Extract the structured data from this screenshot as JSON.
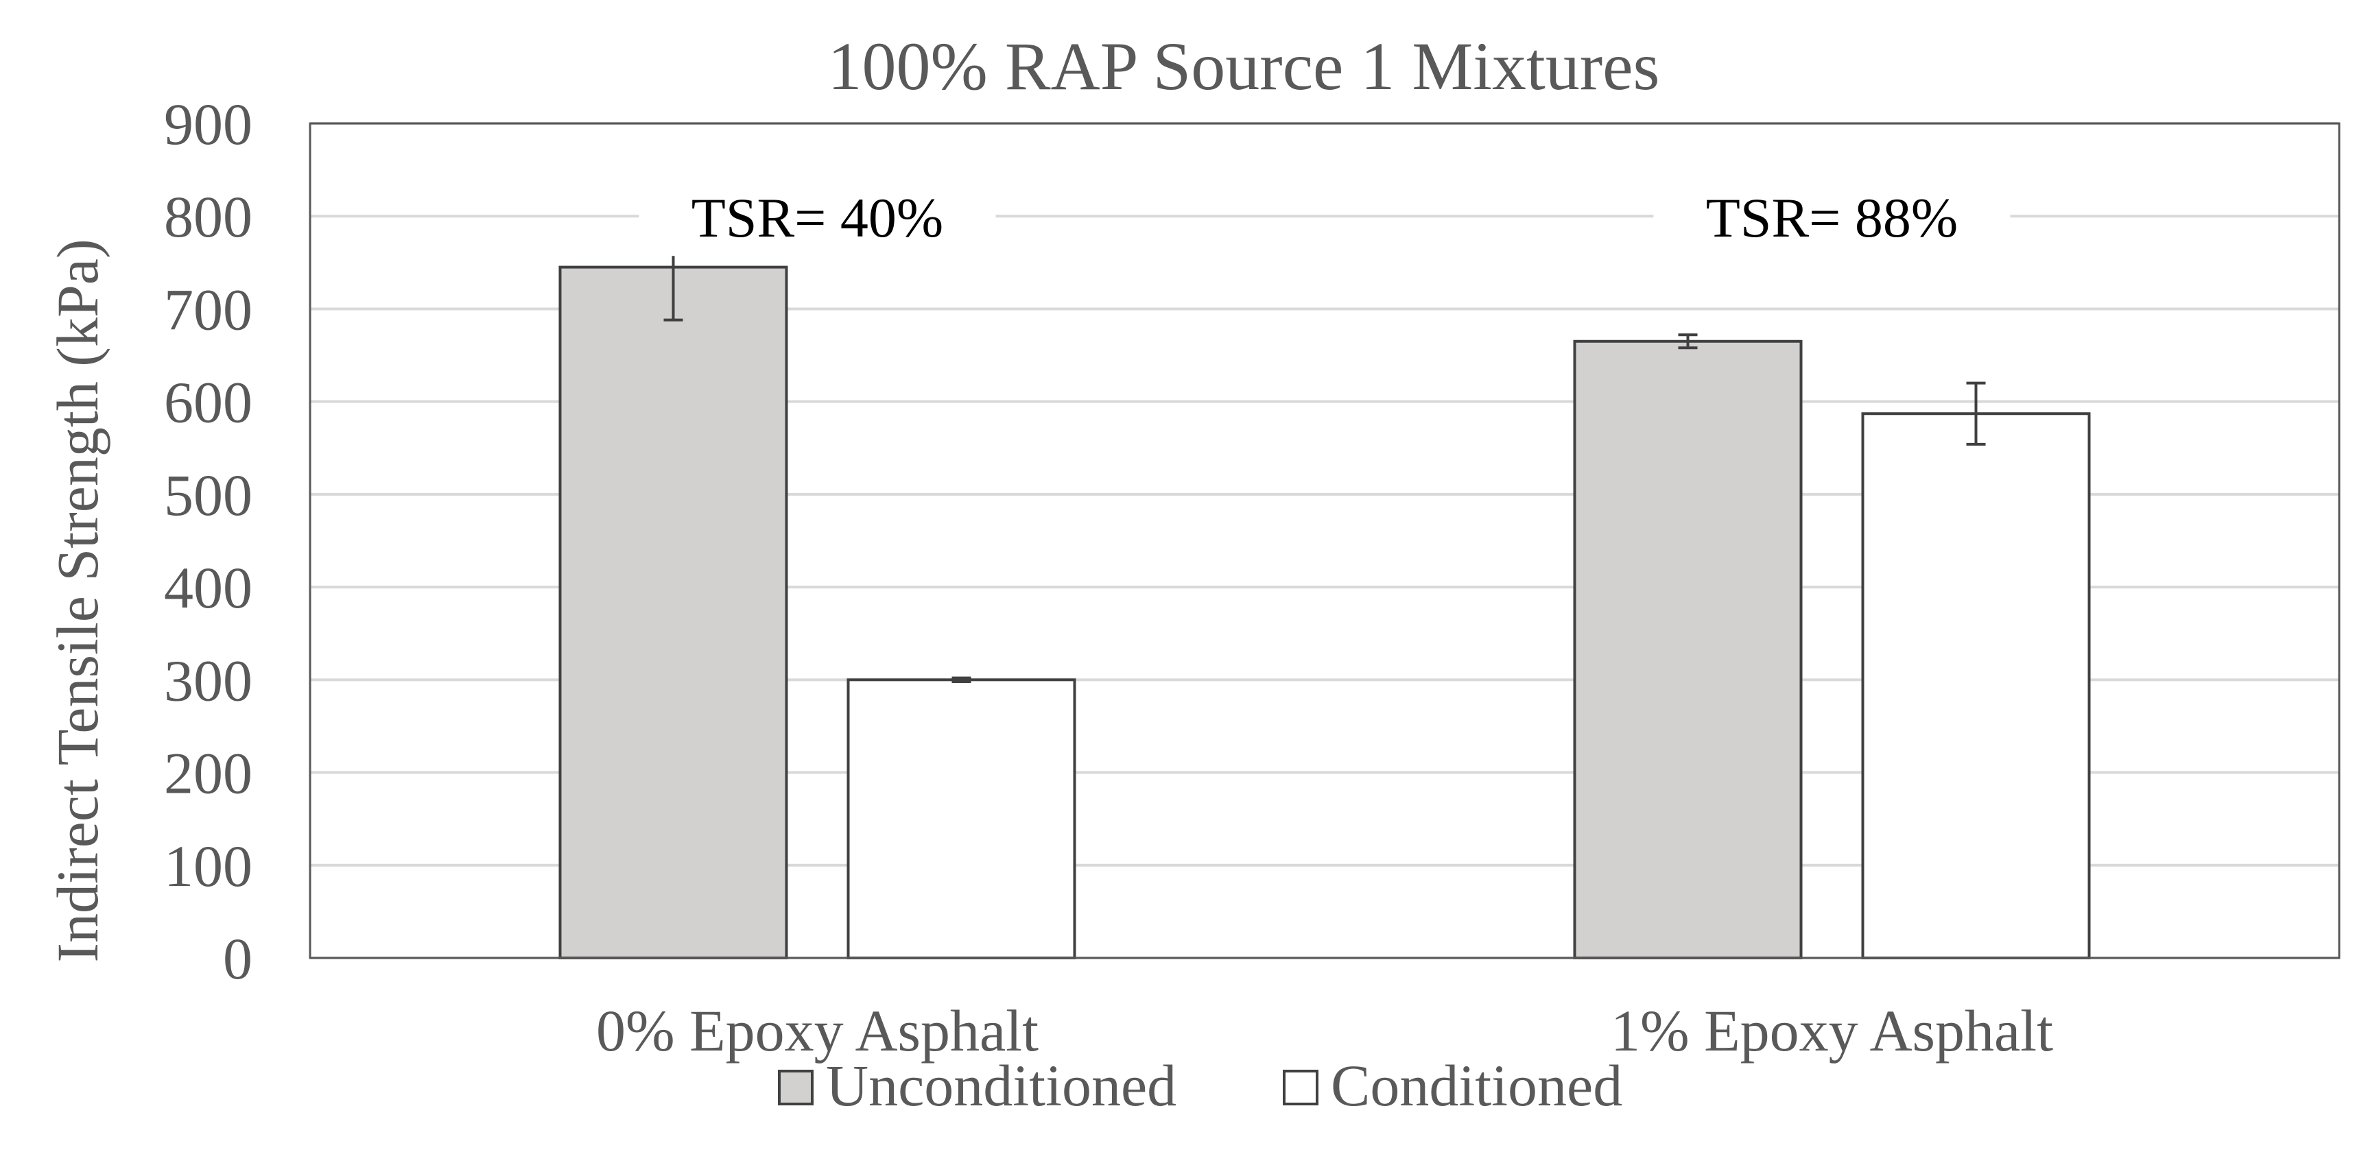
{
  "chart_data": {
    "type": "bar",
    "title": "100% RAP Source 1 Mixtures",
    "xlabel": "",
    "ylabel": "Indirect Tensile Strength (kPa)",
    "ylim": [
      0,
      900
    ],
    "yticks": [
      "0",
      "100",
      "200",
      "300",
      "400",
      "500",
      "600",
      "700",
      "800",
      "900"
    ],
    "categories": [
      "0% Epoxy Asphalt",
      "1% Epoxy Asphalt"
    ],
    "series": [
      {
        "name": "Unconditioned",
        "values": [
          745,
          665
        ],
        "error": [
          57,
          7
        ],
        "color": "#d3d0d0"
      },
      {
        "name": "Conditioned",
        "values": [
          300,
          587
        ],
        "error": [
          2,
          33
        ],
        "color": "#ffffff"
      }
    ],
    "annotations": [
      "TSR= 40%",
      "TSR= 88%"
    ],
    "grid": true,
    "legend": "bottom"
  }
}
